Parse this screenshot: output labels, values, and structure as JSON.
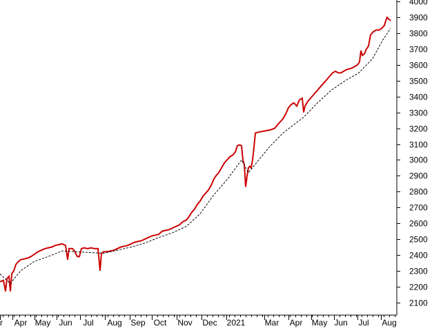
{
  "chart_data": {
    "type": "line",
    "x_tick_labels": [
      "r",
      "Apr",
      "May",
      "Jun",
      "Jul",
      "Aug",
      "Sep",
      "Oct",
      "Nov",
      "Dec",
      "2021",
      "Mar",
      "Apr",
      "May",
      "Jun",
      "Jul",
      "Aug"
    ],
    "y_ticks": [
      2100,
      2200,
      2300,
      2400,
      2500,
      2600,
      2700,
      2800,
      2900,
      3000,
      3100,
      3200,
      3300,
      3400,
      3500,
      3600,
      3700,
      3800,
      3900,
      4000
    ],
    "ylim": [
      2020,
      4010
    ],
    "grid": false,
    "series": [
      {
        "color": "#cc0000",
        "style": "solid",
        "points": [
          [
            0,
            2230
          ],
          [
            5,
            2240
          ],
          [
            8,
            2170
          ],
          [
            10,
            2250
          ],
          [
            13,
            2265
          ],
          [
            15,
            2170
          ],
          [
            17,
            2280
          ],
          [
            20,
            2300
          ],
          [
            23,
            2340
          ],
          [
            27,
            2360
          ],
          [
            30,
            2370
          ],
          [
            35,
            2375
          ],
          [
            40,
            2380
          ],
          [
            45,
            2390
          ],
          [
            50,
            2405
          ],
          [
            55,
            2420
          ],
          [
            60,
            2430
          ],
          [
            65,
            2440
          ],
          [
            70,
            2445
          ],
          [
            75,
            2450
          ],
          [
            80,
            2460
          ],
          [
            85,
            2465
          ],
          [
            90,
            2470
          ],
          [
            95,
            2460
          ],
          [
            98,
            2370
          ],
          [
            100,
            2440
          ],
          [
            105,
            2440
          ],
          [
            108,
            2425
          ],
          [
            112,
            2390
          ],
          [
            115,
            2390
          ],
          [
            118,
            2440
          ],
          [
            122,
            2445
          ],
          [
            127,
            2440
          ],
          [
            132,
            2445
          ],
          [
            137,
            2440
          ],
          [
            142,
            2440
          ],
          [
            145,
            2300
          ],
          [
            147,
            2410
          ],
          [
            150,
            2420
          ],
          [
            155,
            2420
          ],
          [
            160,
            2425
          ],
          [
            165,
            2430
          ],
          [
            170,
            2440
          ],
          [
            175,
            2450
          ],
          [
            180,
            2455
          ],
          [
            185,
            2460
          ],
          [
            190,
            2470
          ],
          [
            195,
            2480
          ],
          [
            200,
            2485
          ],
          [
            205,
            2490
          ],
          [
            210,
            2500
          ],
          [
            215,
            2510
          ],
          [
            220,
            2520
          ],
          [
            225,
            2525
          ],
          [
            230,
            2530
          ],
          [
            235,
            2550
          ],
          [
            240,
            2555
          ],
          [
            245,
            2560
          ],
          [
            250,
            2570
          ],
          [
            255,
            2580
          ],
          [
            260,
            2590
          ],
          [
            265,
            2610
          ],
          [
            270,
            2620
          ],
          [
            272,
            2630
          ],
          [
            275,
            2650
          ],
          [
            278,
            2670
          ],
          [
            282,
            2690
          ],
          [
            286,
            2720
          ],
          [
            290,
            2740
          ],
          [
            294,
            2770
          ],
          [
            298,
            2790
          ],
          [
            302,
            2810
          ],
          [
            306,
            2840
          ],
          [
            310,
            2880
          ],
          [
            313,
            2900
          ],
          [
            317,
            2920
          ],
          [
            321,
            2950
          ],
          [
            325,
            2980
          ],
          [
            329,
            3000
          ],
          [
            333,
            3020
          ],
          [
            337,
            3030
          ],
          [
            341,
            3050
          ],
          [
            344,
            3090
          ],
          [
            347,
            3095
          ],
          [
            350,
            3090
          ],
          [
            352,
            3000
          ],
          [
            354,
            2970
          ],
          [
            356,
            2830
          ],
          [
            358,
            2900
          ],
          [
            360,
            2950
          ],
          [
            362,
            2960
          ],
          [
            364,
            2950
          ],
          [
            366,
            3000
          ],
          [
            368,
            3080
          ],
          [
            370,
            3170
          ],
          [
            374,
            3175
          ],
          [
            380,
            3180
          ],
          [
            386,
            3185
          ],
          [
            392,
            3190
          ],
          [
            398,
            3200
          ],
          [
            402,
            3220
          ],
          [
            406,
            3240
          ],
          [
            410,
            3260
          ],
          [
            414,
            3290
          ],
          [
            418,
            3330
          ],
          [
            422,
            3350
          ],
          [
            426,
            3360
          ],
          [
            430,
            3340
          ],
          [
            434,
            3380
          ],
          [
            438,
            3390
          ],
          [
            440,
            3300
          ],
          [
            442,
            3340
          ],
          [
            446,
            3370
          ],
          [
            450,
            3390
          ],
          [
            454,
            3410
          ],
          [
            458,
            3430
          ],
          [
            462,
            3450
          ],
          [
            466,
            3470
          ],
          [
            470,
            3490
          ],
          [
            474,
            3510
          ],
          [
            478,
            3530
          ],
          [
            482,
            3550
          ],
          [
            486,
            3560
          ],
          [
            490,
            3550
          ],
          [
            494,
            3550
          ],
          [
            498,
            3560
          ],
          [
            502,
            3570
          ],
          [
            506,
            3575
          ],
          [
            510,
            3580
          ],
          [
            514,
            3590
          ],
          [
            518,
            3600
          ],
          [
            521,
            3620
          ],
          [
            523,
            3690
          ],
          [
            525,
            3660
          ],
          [
            528,
            3670
          ],
          [
            531,
            3700
          ],
          [
            534,
            3720
          ],
          [
            537,
            3790
          ],
          [
            541,
            3810
          ],
          [
            545,
            3820
          ],
          [
            549,
            3820
          ],
          [
            553,
            3830
          ],
          [
            557,
            3850
          ],
          [
            559,
            3880
          ],
          [
            561,
            3900
          ],
          [
            563,
            3890
          ],
          [
            566,
            3880
          ]
        ]
      },
      {
        "color": "#000000",
        "style": "dashed",
        "points": [
          [
            0,
            2280
          ],
          [
            15,
            2220
          ],
          [
            30,
            2300
          ],
          [
            50,
            2360
          ],
          [
            70,
            2390
          ],
          [
            90,
            2425
          ],
          [
            110,
            2420
          ],
          [
            130,
            2415
          ],
          [
            150,
            2410
          ],
          [
            170,
            2430
          ],
          [
            190,
            2450
          ],
          [
            210,
            2475
          ],
          [
            230,
            2510
          ],
          [
            250,
            2540
          ],
          [
            270,
            2580
          ],
          [
            290,
            2660
          ],
          [
            310,
            2780
          ],
          [
            330,
            2880
          ],
          [
            350,
            3000
          ],
          [
            360,
            2920
          ],
          [
            375,
            3000
          ],
          [
            390,
            3080
          ],
          [
            410,
            3170
          ],
          [
            425,
            3220
          ],
          [
            440,
            3270
          ],
          [
            460,
            3360
          ],
          [
            480,
            3440
          ],
          [
            500,
            3500
          ],
          [
            520,
            3550
          ],
          [
            540,
            3640
          ],
          [
            555,
            3760
          ],
          [
            566,
            3830
          ]
        ]
      }
    ]
  }
}
